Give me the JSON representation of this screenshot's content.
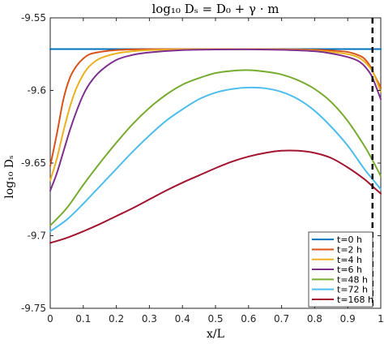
{
  "chart_data": {
    "type": "line",
    "title": "log₁₀ Dₛ = D₀ + γ · m",
    "xlabel": "x/L",
    "ylabel": "log₁₀ Dₛ",
    "xlim": [
      0,
      1
    ],
    "ylim": [
      -9.75,
      -9.55
    ],
    "xticks": [
      "0",
      "0.1",
      "0.2",
      "0.3",
      "0.4",
      "0.5",
      "0.6",
      "0.7",
      "0.8",
      "0.9",
      "1"
    ],
    "yticks": [
      "-9.55",
      "-9.6",
      "-9.65",
      "-9.7",
      "-9.75"
    ],
    "grid": false,
    "legend_position": "bottom-right",
    "vertical_line": {
      "x": 0.975,
      "style": "dashed",
      "color": "#000000"
    },
    "series": [
      {
        "name": "t=0 h",
        "color": "#0072BD",
        "x": [
          0,
          0.5,
          1
        ],
        "y": [
          -9.5715,
          -9.5715,
          -9.5715
        ]
      },
      {
        "name": "t=2 h",
        "color": "#D95319",
        "x": [
          0,
          0.02,
          0.04,
          0.06,
          0.08,
          0.1,
          0.12,
          0.15,
          0.2,
          0.3,
          0.5,
          0.7,
          0.8,
          0.85,
          0.9,
          0.93,
          0.95,
          0.97,
          0.98,
          1
        ],
        "y": [
          -9.652,
          -9.63,
          -9.606,
          -9.591,
          -9.583,
          -9.578,
          -9.575,
          -9.5735,
          -9.5722,
          -9.5716,
          -9.5715,
          -9.5716,
          -9.572,
          -9.5725,
          -9.5735,
          -9.5755,
          -9.578,
          -9.584,
          -9.589,
          -9.598
        ]
      },
      {
        "name": "t=4 h",
        "color": "#EDB120",
        "x": [
          0,
          0.02,
          0.04,
          0.06,
          0.08,
          0.1,
          0.12,
          0.15,
          0.2,
          0.25,
          0.3,
          0.4,
          0.5,
          0.6,
          0.7,
          0.8,
          0.85,
          0.9,
          0.93,
          0.95,
          0.97,
          0.98,
          1
        ],
        "y": [
          -9.662,
          -9.647,
          -9.628,
          -9.611,
          -9.598,
          -9.589,
          -9.583,
          -9.578,
          -9.5745,
          -9.573,
          -9.5722,
          -9.5717,
          -9.5716,
          -9.5716,
          -9.5718,
          -9.5726,
          -9.5735,
          -9.575,
          -9.577,
          -9.58,
          -9.585,
          -9.589,
          -9.601
        ]
      },
      {
        "name": "t=6 h",
        "color": "#7E2F8E",
        "x": [
          0,
          0.02,
          0.04,
          0.06,
          0.08,
          0.1,
          0.12,
          0.15,
          0.2,
          0.25,
          0.3,
          0.4,
          0.5,
          0.6,
          0.7,
          0.8,
          0.85,
          0.9,
          0.93,
          0.95,
          0.97,
          0.98,
          1
        ],
        "y": [
          -9.669,
          -9.657,
          -9.642,
          -9.627,
          -9.614,
          -9.603,
          -9.595,
          -9.587,
          -9.579,
          -9.5755,
          -9.5738,
          -9.5722,
          -9.5718,
          -9.5717,
          -9.572,
          -9.573,
          -9.5745,
          -9.577,
          -9.5795,
          -9.583,
          -9.589,
          -9.594,
          -9.606
        ]
      },
      {
        "name": "t=48 h",
        "color": "#77AC30",
        "x": [
          0,
          0.05,
          0.1,
          0.15,
          0.2,
          0.25,
          0.3,
          0.35,
          0.4,
          0.45,
          0.5,
          0.55,
          0.6,
          0.65,
          0.7,
          0.75,
          0.8,
          0.85,
          0.9,
          0.95,
          0.975,
          1
        ],
        "y": [
          -9.693,
          -9.681,
          -9.665,
          -9.65,
          -9.636,
          -9.623,
          -9.612,
          -9.603,
          -9.596,
          -9.5915,
          -9.588,
          -9.5865,
          -9.586,
          -9.587,
          -9.589,
          -9.593,
          -9.599,
          -9.608,
          -9.621,
          -9.638,
          -9.648,
          -9.659
        ]
      },
      {
        "name": "t=72 h",
        "color": "#4DBEEE",
        "x": [
          0,
          0.05,
          0.1,
          0.15,
          0.2,
          0.25,
          0.3,
          0.35,
          0.4,
          0.45,
          0.5,
          0.55,
          0.6,
          0.65,
          0.7,
          0.75,
          0.8,
          0.85,
          0.9,
          0.95,
          0.975,
          1
        ],
        "y": [
          -9.697,
          -9.689,
          -9.678,
          -9.666,
          -9.654,
          -9.642,
          -9.631,
          -9.621,
          -9.613,
          -9.606,
          -9.6015,
          -9.599,
          -9.598,
          -9.5985,
          -9.601,
          -9.606,
          -9.614,
          -9.625,
          -9.638,
          -9.654,
          -9.661,
          -9.668
        ]
      },
      {
        "name": "t=168 h",
        "color": "#A2142F",
        "x": [
          0,
          0.05,
          0.1,
          0.15,
          0.2,
          0.25,
          0.3,
          0.35,
          0.4,
          0.45,
          0.5,
          0.55,
          0.6,
          0.65,
          0.7,
          0.75,
          0.8,
          0.85,
          0.9,
          0.95,
          0.975,
          1
        ],
        "y": [
          -9.705,
          -9.7015,
          -9.697,
          -9.692,
          -9.6865,
          -9.681,
          -9.675,
          -9.669,
          -9.6635,
          -9.6585,
          -9.6535,
          -9.649,
          -9.6455,
          -9.643,
          -9.6415,
          -9.6415,
          -9.643,
          -9.6465,
          -9.653,
          -9.661,
          -9.666,
          -9.671
        ]
      }
    ]
  }
}
